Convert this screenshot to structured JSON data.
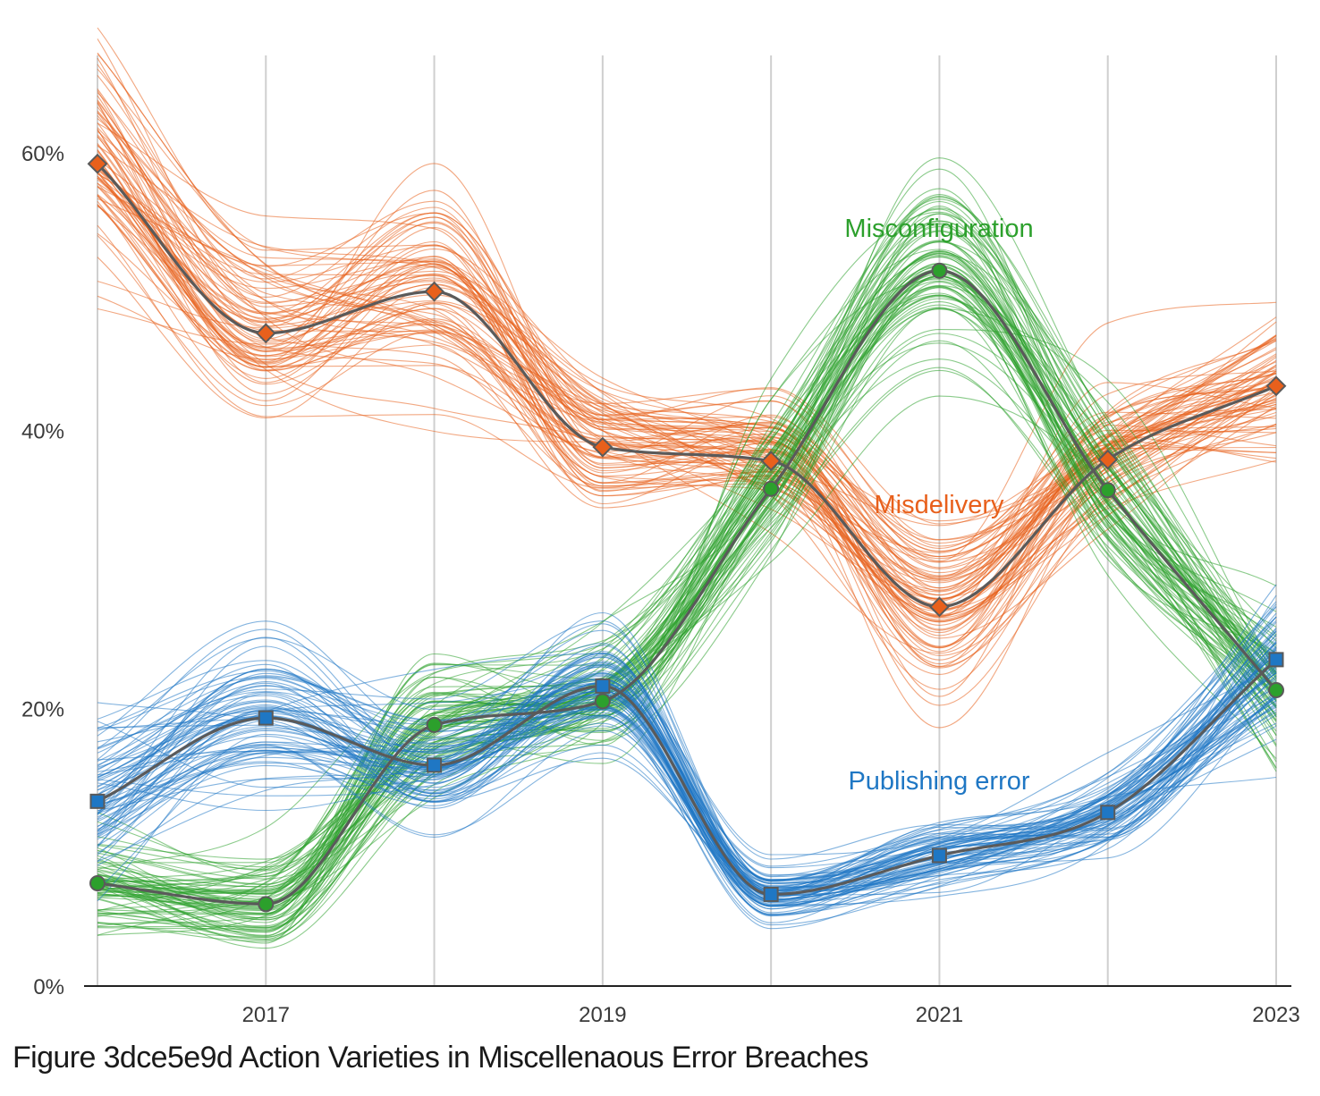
{
  "caption": "Figure 3dce5e9d Action Varieties in Miscellenaous Error Breaches",
  "chart_data": {
    "type": "line",
    "title": "",
    "xlabel": "",
    "ylabel": "",
    "x": [
      2016,
      2017,
      2018,
      2019,
      2020,
      2021,
      2022,
      2023
    ],
    "x_tick_labels": [
      "2017",
      "2019",
      "2021",
      "2023"
    ],
    "x_tick_values": [
      2017,
      2019,
      2021,
      2023
    ],
    "y_tick_labels": [
      "0%",
      "20%",
      "40%",
      "60%"
    ],
    "y_tick_values": [
      0,
      20,
      40,
      60
    ],
    "ylim": [
      0,
      67
    ],
    "grid": "vertical",
    "median_line_color": "#5a5a5a",
    "series": [
      {
        "name": "Misdelivery",
        "color": "#e8601c",
        "marker": "diamond",
        "values": [
          59.2,
          47.0,
          50.0,
          38.8,
          37.8,
          27.3,
          37.9,
          43.2
        ],
        "spread": [
          4.0,
          3.0,
          3.5,
          2.5,
          2.0,
          3.0,
          2.5,
          2.5
        ]
      },
      {
        "name": "Misconfiguration",
        "color": "#2ca02c",
        "marker": "circle",
        "values": [
          7.4,
          5.9,
          18.8,
          20.5,
          35.8,
          51.5,
          35.7,
          21.3
        ],
        "spread": [
          2.0,
          1.8,
          2.5,
          2.0,
          2.5,
          3.0,
          3.0,
          3.0
        ]
      },
      {
        "name": "Publishing error",
        "color": "#1f77c4",
        "marker": "square",
        "values": [
          13.3,
          19.3,
          15.9,
          21.6,
          6.6,
          9.4,
          12.5,
          23.5
        ],
        "spread": [
          3.0,
          2.5,
          2.0,
          2.0,
          1.0,
          1.2,
          1.5,
          2.5
        ]
      }
    ]
  }
}
